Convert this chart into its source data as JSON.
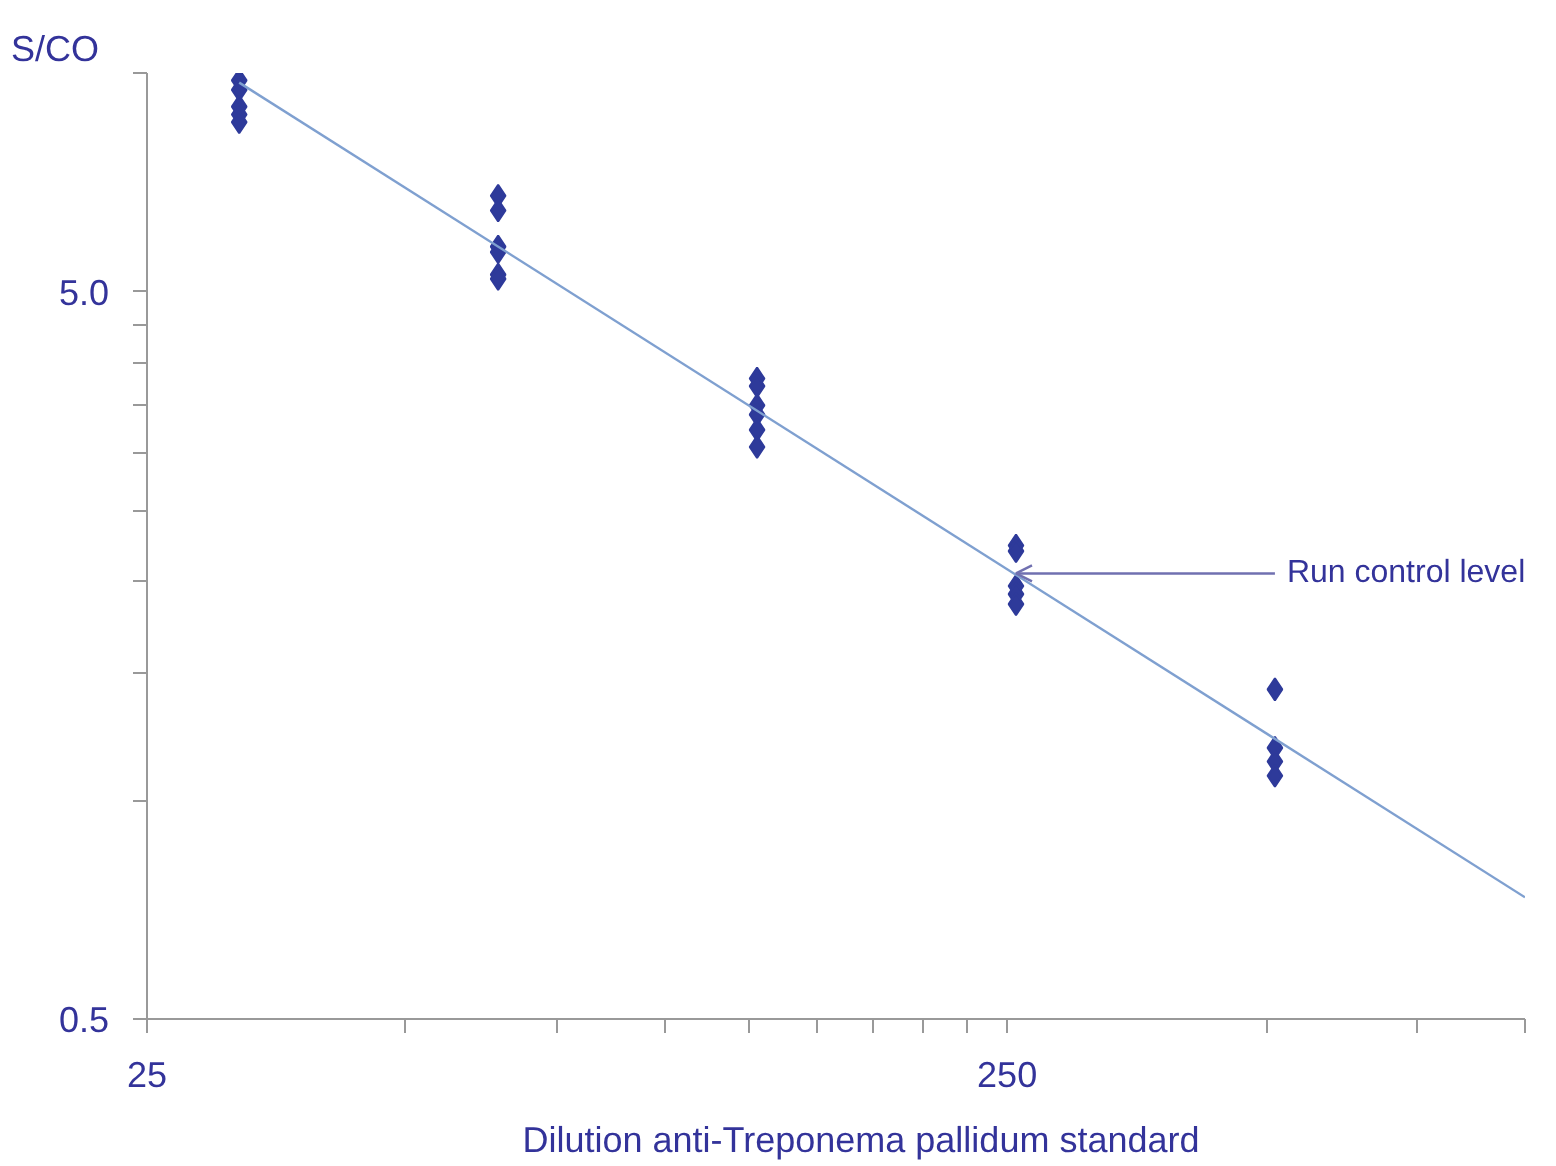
{
  "chart_data": {
    "type": "scatter",
    "xlabel": "Dilution anti-Treponema pallidum standard",
    "ylabel": "S/CO",
    "log": "xy",
    "grid": false,
    "xlim": [
      25,
      1000
    ],
    "ylim": [
      0.5,
      10
    ],
    "xticks": [
      25,
      {
        "value": 50,
        "label": null
      },
      {
        "value": 75,
        "label": null
      },
      {
        "value": 100,
        "label": null
      },
      {
        "value": 125,
        "label": null
      },
      {
        "value": 150,
        "label": null
      },
      {
        "value": 175,
        "label": null
      },
      {
        "value": 200,
        "label": null
      },
      {
        "value": 225,
        "label": null
      },
      250,
      {
        "value": 500,
        "label": null
      },
      {
        "value": 750,
        "label": null
      },
      {
        "value": 1000,
        "label": null
      }
    ],
    "yticks": [
      0.5,
      {
        "value": 1,
        "label": null
      },
      {
        "value": 1.5,
        "label": null
      },
      {
        "value": 2,
        "label": null
      },
      {
        "value": 2.5,
        "label": null
      },
      {
        "value": 3,
        "label": null
      },
      {
        "value": 3.5,
        "label": null
      },
      {
        "value": 4,
        "label": null
      },
      {
        "value": 4.5,
        "label": null
      },
      {
        "value": 5,
        "label": "5.0"
      },
      {
        "value": 10,
        "label": null
      }
    ],
    "series": [
      {
        "marker": "diamond",
        "color": "#2e3a9a",
        "x": [
          32,
          32,
          32,
          32,
          32,
          64,
          64,
          64,
          64,
          64,
          64,
          128,
          128,
          128,
          128,
          128,
          128,
          256,
          256,
          256,
          256,
          256,
          512,
          512,
          512,
          512
        ],
        "values": [
          9.77,
          9.48,
          8.99,
          8.77,
          8.56,
          6.78,
          6.47,
          5.77,
          5.67,
          5.28,
          5.21,
          3.8,
          3.71,
          3.49,
          3.39,
          3.23,
          3.06,
          2.24,
          2.2,
          1.97,
          1.92,
          1.86,
          1.42,
          1.18,
          1.13,
          1.08
        ]
      },
      {
        "type": "line",
        "color": "#7fa0d0",
        "x": [
          32,
          1000
        ],
        "values": [
          9.7,
          0.735
        ]
      }
    ],
    "annotations": [
      {
        "text": "Run control level",
        "x": 256,
        "y": 2.05
      }
    ]
  }
}
